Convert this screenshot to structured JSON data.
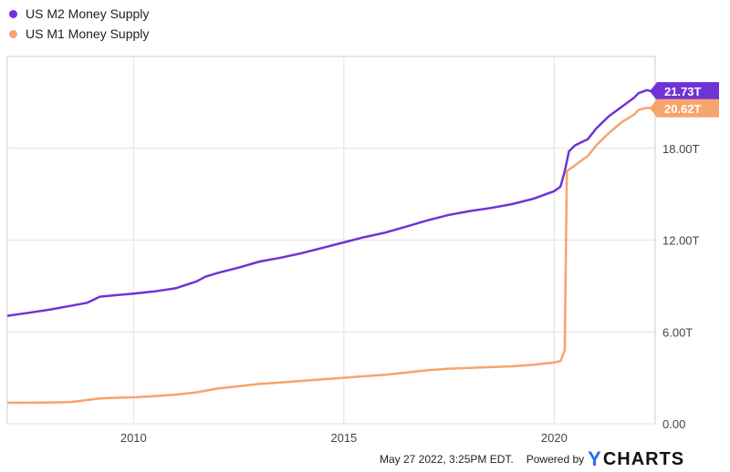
{
  "legend": [
    {
      "label": "US M2 Money Supply",
      "color": "#6f33d6"
    },
    {
      "label": "US M1 Money Supply",
      "color": "#f7a46c"
    }
  ],
  "footer": {
    "timestamp": "May 27 2022, 3:25PM EDT.",
    "powered_by": "Powered by",
    "logo_y": "Y",
    "logo_rest": "CHARTS"
  },
  "chart_data": {
    "type": "line",
    "title": "",
    "xlabel": "",
    "ylabel": "",
    "x_ticks": [
      "2010",
      "2015",
      "2020"
    ],
    "y_ticks": [
      "0.00",
      "6.00T",
      "12.00T",
      "18.00T"
    ],
    "ylim": [
      0,
      24
    ],
    "xlim": [
      2007.0,
      2022.4
    ],
    "grid": true,
    "legend_position": "top-left",
    "series": [
      {
        "name": "US M2 Money Supply",
        "color": "#6f33d6",
        "last_label": "21.73T",
        "points": [
          [
            2007.0,
            7.05
          ],
          [
            2007.5,
            7.25
          ],
          [
            2008.0,
            7.45
          ],
          [
            2008.5,
            7.7
          ],
          [
            2008.9,
            7.9
          ],
          [
            2009.2,
            8.3
          ],
          [
            2009.6,
            8.4
          ],
          [
            2010.0,
            8.5
          ],
          [
            2010.5,
            8.65
          ],
          [
            2011.0,
            8.85
          ],
          [
            2011.5,
            9.3
          ],
          [
            2011.7,
            9.6
          ],
          [
            2012.0,
            9.85
          ],
          [
            2012.5,
            10.2
          ],
          [
            2013.0,
            10.6
          ],
          [
            2013.5,
            10.85
          ],
          [
            2014.0,
            11.15
          ],
          [
            2014.5,
            11.5
          ],
          [
            2015.0,
            11.85
          ],
          [
            2015.5,
            12.2
          ],
          [
            2016.0,
            12.5
          ],
          [
            2016.5,
            12.9
          ],
          [
            2017.0,
            13.3
          ],
          [
            2017.5,
            13.65
          ],
          [
            2018.0,
            13.9
          ],
          [
            2018.5,
            14.1
          ],
          [
            2019.0,
            14.35
          ],
          [
            2019.5,
            14.7
          ],
          [
            2020.0,
            15.2
          ],
          [
            2020.15,
            15.5
          ],
          [
            2020.25,
            16.5
          ],
          [
            2020.35,
            17.8
          ],
          [
            2020.5,
            18.2
          ],
          [
            2020.8,
            18.6
          ],
          [
            2021.0,
            19.3
          ],
          [
            2021.3,
            20.1
          ],
          [
            2021.6,
            20.7
          ],
          [
            2021.9,
            21.3
          ],
          [
            2022.0,
            21.6
          ],
          [
            2022.2,
            21.8
          ],
          [
            2022.3,
            21.73
          ]
        ]
      },
      {
        "name": "US M1 Money Supply",
        "color": "#f7a46c",
        "last_label": "20.62T",
        "points": [
          [
            2007.0,
            1.37
          ],
          [
            2007.5,
            1.37
          ],
          [
            2008.0,
            1.38
          ],
          [
            2008.5,
            1.42
          ],
          [
            2008.9,
            1.55
          ],
          [
            2009.2,
            1.65
          ],
          [
            2009.6,
            1.7
          ],
          [
            2010.0,
            1.73
          ],
          [
            2010.5,
            1.8
          ],
          [
            2011.0,
            1.9
          ],
          [
            2011.5,
            2.05
          ],
          [
            2011.7,
            2.15
          ],
          [
            2012.0,
            2.3
          ],
          [
            2012.5,
            2.45
          ],
          [
            2013.0,
            2.6
          ],
          [
            2013.5,
            2.7
          ],
          [
            2014.0,
            2.8
          ],
          [
            2014.5,
            2.9
          ],
          [
            2015.0,
            3.0
          ],
          [
            2015.5,
            3.1
          ],
          [
            2016.0,
            3.2
          ],
          [
            2016.5,
            3.35
          ],
          [
            2017.0,
            3.5
          ],
          [
            2017.5,
            3.6
          ],
          [
            2018.0,
            3.65
          ],
          [
            2018.5,
            3.7
          ],
          [
            2019.0,
            3.75
          ],
          [
            2019.5,
            3.85
          ],
          [
            2020.0,
            4.0
          ],
          [
            2020.15,
            4.1
          ],
          [
            2020.25,
            4.8
          ],
          [
            2020.3,
            16.5
          ],
          [
            2020.45,
            16.8
          ],
          [
            2020.8,
            17.5
          ],
          [
            2021.0,
            18.2
          ],
          [
            2021.3,
            19.0
          ],
          [
            2021.6,
            19.7
          ],
          [
            2021.9,
            20.2
          ],
          [
            2022.0,
            20.5
          ],
          [
            2022.2,
            20.65
          ],
          [
            2022.3,
            20.62
          ]
        ]
      }
    ]
  }
}
